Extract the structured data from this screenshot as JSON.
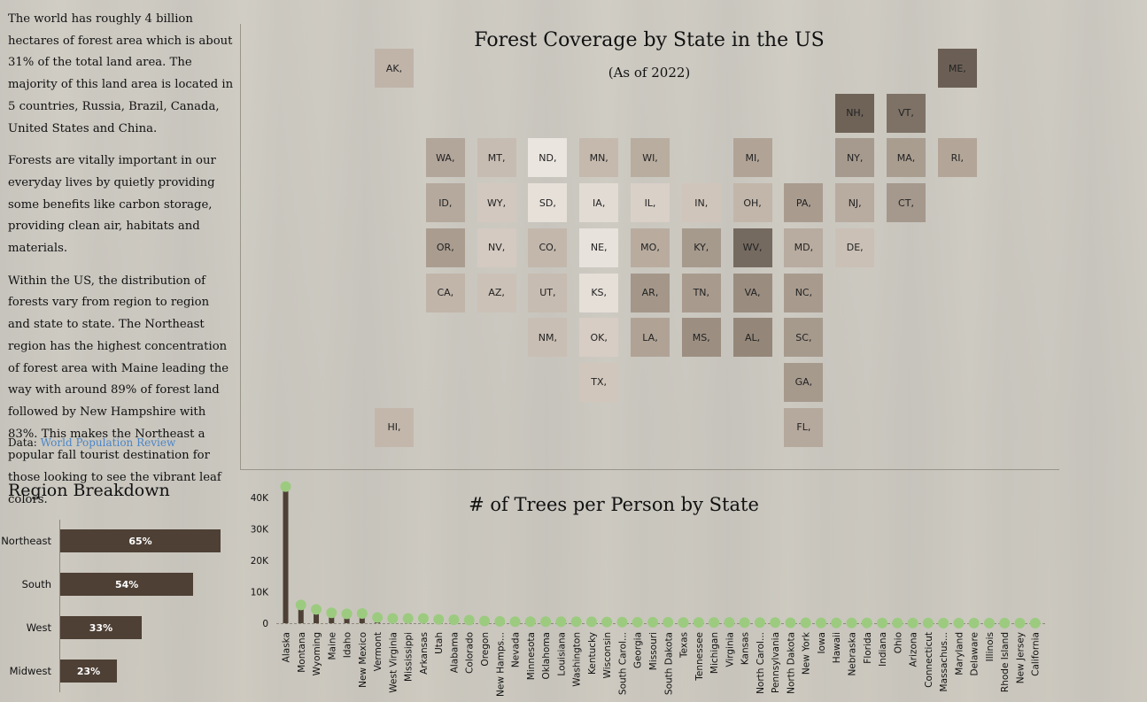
{
  "intro": {
    "p1": "The world has roughly 4 billion hectares of forest area which is about 31% of the total land area. The majority of this land area is located in 5 countries, Russia, Brazil, Canada, United States and China.",
    "p2": "Forests are vitally important in our everyday lives by quietly providing some benefits like carbon storage, providing clean air, habitats and materials.",
    "p3": "Within the US, the distribution of forests vary from region to region and state to state. The Northeast region has the highest concentration of forest area with Maine leading the way with around 89% of forest land followed by New Hampshire with 83%. This makes the Northeast a popular fall tourist destination for those looking to see the vibrant leaf colors.",
    "source_label": "Data:",
    "source_link": "World Population Review"
  },
  "map": {
    "title": "Forest Coverage by State in the US",
    "subtitle": "(As of 2022)",
    "tiles": [
      {
        "code": "AK,",
        "row": 0,
        "col": 0,
        "color": "#c0b4a9"
      },
      {
        "code": "ME,",
        "row": 0,
        "col": 11,
        "color": "#6b5f55"
      },
      {
        "code": "NH,",
        "row": 1,
        "col": 9,
        "color": "#6f6358"
      },
      {
        "code": "VT,",
        "row": 1,
        "col": 10,
        "color": "#7e7267"
      },
      {
        "code": "WA,",
        "row": 2,
        "col": 1,
        "color": "#b2a59a"
      },
      {
        "code": "MT,",
        "row": 2,
        "col": 2,
        "color": "#c7bcb2"
      },
      {
        "code": "ND,",
        "row": 2,
        "col": 3,
        "color": "#ebe5df"
      },
      {
        "code": "MN,",
        "row": 2,
        "col": 4,
        "color": "#c5b9ae"
      },
      {
        "code": "WI,",
        "row": 2,
        "col": 5,
        "color": "#b9ad9f"
      },
      {
        "code": "MI,",
        "row": 2,
        "col": 7,
        "color": "#b1a497"
      },
      {
        "code": "NY,",
        "row": 2,
        "col": 9,
        "color": "#a69a8e"
      },
      {
        "code": "MA,",
        "row": 2,
        "col": 10,
        "color": "#a99d90"
      },
      {
        "code": "RI,",
        "row": 2,
        "col": 11,
        "color": "#b3a699"
      },
      {
        "code": "ID,",
        "row": 3,
        "col": 1,
        "color": "#b5a99d"
      },
      {
        "code": "WY,",
        "row": 3,
        "col": 2,
        "color": "#d2c8bf"
      },
      {
        "code": "SD,",
        "row": 3,
        "col": 3,
        "color": "#e6e0d9"
      },
      {
        "code": "IA,",
        "row": 3,
        "col": 4,
        "color": "#e2dbd4"
      },
      {
        "code": "IL,",
        "row": 3,
        "col": 5,
        "color": "#d9d0c7"
      },
      {
        "code": "IN,",
        "row": 3,
        "col": 6,
        "color": "#d0c5bb"
      },
      {
        "code": "OH,",
        "row": 3,
        "col": 7,
        "color": "#c2b6aa"
      },
      {
        "code": "PA,",
        "row": 3,
        "col": 8,
        "color": "#a99c8f"
      },
      {
        "code": "NJ,",
        "row": 3,
        "col": 9,
        "color": "#b8ab9f"
      },
      {
        "code": "CT,",
        "row": 3,
        "col": 10,
        "color": "#a5988c"
      },
      {
        "code": "OR,",
        "row": 4,
        "col": 1,
        "color": "#aa9d90"
      },
      {
        "code": "NV,",
        "row": 4,
        "col": 2,
        "color": "#d4cac1"
      },
      {
        "code": "CO,",
        "row": 4,
        "col": 3,
        "color": "#c3b7ac"
      },
      {
        "code": "NE,",
        "row": 4,
        "col": 4,
        "color": "#e8e2dc"
      },
      {
        "code": "MO,",
        "row": 4,
        "col": 5,
        "color": "#b9ac9f"
      },
      {
        "code": "KY,",
        "row": 4,
        "col": 6,
        "color": "#a69a8d"
      },
      {
        "code": "WV,",
        "row": 4,
        "col": 7,
        "color": "#756a60"
      },
      {
        "code": "MD,",
        "row": 4,
        "col": 8,
        "color": "#b8ab9f"
      },
      {
        "code": "DE,",
        "row": 4,
        "col": 9,
        "color": "#cbc0b6"
      },
      {
        "code": "CA,",
        "row": 5,
        "col": 1,
        "color": "#c1b5aa"
      },
      {
        "code": "AZ,",
        "row": 5,
        "col": 2,
        "color": "#cbc1b7"
      },
      {
        "code": "UT,",
        "row": 5,
        "col": 3,
        "color": "#c7bcb1"
      },
      {
        "code": "KS,",
        "row": 5,
        "col": 4,
        "color": "#e5dfd8"
      },
      {
        "code": "AR,",
        "row": 5,
        "col": 5,
        "color": "#a49789"
      },
      {
        "code": "TN,",
        "row": 5,
        "col": 6,
        "color": "#a89b8e"
      },
      {
        "code": "VA,",
        "row": 5,
        "col": 7,
        "color": "#9a8d80"
      },
      {
        "code": "NC,",
        "row": 5,
        "col": 8,
        "color": "#a89b8e"
      },
      {
        "code": "NM,",
        "row": 6,
        "col": 3,
        "color": "#c9beb4"
      },
      {
        "code": "OK,",
        "row": 6,
        "col": 4,
        "color": "#d7cdc4"
      },
      {
        "code": "LA,",
        "row": 6,
        "col": 5,
        "color": "#b0a396"
      },
      {
        "code": "MS,",
        "row": 6,
        "col": 6,
        "color": "#9c8f82"
      },
      {
        "code": "AL,",
        "row": 6,
        "col": 7,
        "color": "#948779"
      },
      {
        "code": "SC,",
        "row": 6,
        "col": 8,
        "color": "#a69a8d"
      },
      {
        "code": "TX,",
        "row": 7,
        "col": 4,
        "color": "#d0c6bc"
      },
      {
        "code": "GA,",
        "row": 7,
        "col": 8,
        "color": "#a69a8d"
      },
      {
        "code": "HI,",
        "row": 8,
        "col": 0,
        "color": "#c3b7ac"
      },
      {
        "code": "FL,",
        "row": 8,
        "col": 8,
        "color": "#b5a89c"
      }
    ]
  },
  "region": {
    "title": "Region Breakdown",
    "bars": [
      {
        "name": "Northeast",
        "value": 65,
        "label": "65%"
      },
      {
        "name": "South",
        "value": 54,
        "label": "54%"
      },
      {
        "name": "West",
        "value": 33,
        "label": "33%"
      },
      {
        "name": "Midwest",
        "value": 23,
        "label": "23%"
      }
    ]
  },
  "chart_data": {
    "type": "lollipop",
    "title": "# of Trees per Person by State",
    "y_ticks": [
      "0",
      "10K",
      "20K",
      "30K",
      "40K"
    ],
    "ylim": [
      0,
      45000
    ],
    "stem_color": "#4e4035",
    "dot_color": "#9ccb80",
    "categories": [
      "Alaska",
      "Montana",
      "Wyoming",
      "Maine",
      "Idaho",
      "New Mexico",
      "Vermont",
      "West Virginia",
      "Mississippi",
      "Arkansas",
      "Utah",
      "Alabama",
      "Colorado",
      "Oregon",
      "New Hamps...",
      "Nevada",
      "Minnesota",
      "Oklahoma",
      "Louisiana",
      "Washington",
      "Kentucky",
      "Wisconsin",
      "South Carol...",
      "Georgia",
      "Missouri",
      "South Dakota",
      "Texas",
      "Tennessee",
      "Michigan",
      "Virginia",
      "Kansas",
      "North Carol...",
      "Pennsylvania",
      "North Dakota",
      "New York",
      "Iowa",
      "Hawaii",
      "Nebraska",
      "Florida",
      "Indiana",
      "Ohio",
      "Arizona",
      "Connecticut",
      "Massachus...",
      "Maryland",
      "Delaware",
      "Illinois",
      "Rhode Island",
      "New Jersey",
      "California"
    ],
    "values": [
      43500,
      5800,
      4400,
      3300,
      3000,
      3100,
      1800,
      1500,
      1500,
      1500,
      1200,
      1100,
      1000,
      700,
      600,
      500,
      500,
      500,
      500,
      500,
      450,
      400,
      350,
      300,
      300,
      300,
      250,
      250,
      250,
      250,
      200,
      200,
      200,
      150,
      150,
      100,
      100,
      100,
      100,
      80,
      80,
      70,
      60,
      50,
      40,
      30,
      30,
      20,
      20,
      20
    ]
  }
}
